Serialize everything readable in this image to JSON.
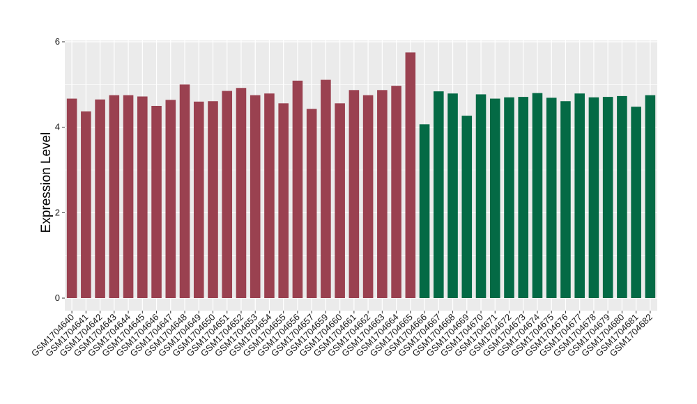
{
  "chart_data": {
    "type": "bar",
    "title": "",
    "xlabel": "",
    "ylabel": "Expression Level",
    "ylim": [
      0,
      6
    ],
    "yticks": [
      0,
      2,
      4,
      6
    ],
    "grid": true,
    "background": "#ebebeb",
    "grid_color": "#ffffff",
    "categories": [
      "GSM1704640",
      "GSM1704641",
      "GSM1704642",
      "GSM1704643",
      "GSM1704644",
      "GSM1704645",
      "GSM1704646",
      "GSM1704647",
      "GSM1704648",
      "GSM1704649",
      "GSM1704650",
      "GSM1704651",
      "GSM1704652",
      "GSM1704653",
      "GSM1704654",
      "GSM1704655",
      "GSM1704656",
      "GSM1704657",
      "GSM1704659",
      "GSM1704660",
      "GSM1704661",
      "GSM1704662",
      "GSM1704663",
      "GSM1704664",
      "GSM1704665",
      "GSM1704666",
      "GSM1704667",
      "GSM1704668",
      "GSM1704669",
      "GSM1704670",
      "GSM1704671",
      "GSM1704672",
      "GSM1704673",
      "GSM1704674",
      "GSM1704675",
      "GSM1704676",
      "GSM1704677",
      "GSM1704678",
      "GSM1704679",
      "GSM1704680",
      "GSM1704681",
      "GSM1704682"
    ],
    "values": [
      4.67,
      4.37,
      4.65,
      4.75,
      4.75,
      4.72,
      4.5,
      4.64,
      5.0,
      4.6,
      4.61,
      4.85,
      4.92,
      4.75,
      4.79,
      4.56,
      5.09,
      4.43,
      5.11,
      4.56,
      4.87,
      4.75,
      4.87,
      4.97,
      5.75,
      4.07,
      4.84,
      4.79,
      4.27,
      4.77,
      4.67,
      4.7,
      4.71,
      4.8,
      4.69,
      4.61,
      4.79,
      4.7,
      4.71,
      4.73,
      4.48,
      4.75
    ],
    "colors": [
      "#9a4150",
      "#9a4150",
      "#9a4150",
      "#9a4150",
      "#9a4150",
      "#9a4150",
      "#9a4150",
      "#9a4150",
      "#9a4150",
      "#9a4150",
      "#9a4150",
      "#9a4150",
      "#9a4150",
      "#9a4150",
      "#9a4150",
      "#9a4150",
      "#9a4150",
      "#9a4150",
      "#9a4150",
      "#9a4150",
      "#9a4150",
      "#9a4150",
      "#9a4150",
      "#9a4150",
      "#9a4150",
      "#046a45",
      "#046a45",
      "#046a45",
      "#046a45",
      "#046a45",
      "#046a45",
      "#046a45",
      "#046a45",
      "#046a45",
      "#046a45",
      "#046a45",
      "#046a45",
      "#046a45",
      "#046a45",
      "#046a45",
      "#046a45",
      "#046a45"
    ]
  }
}
